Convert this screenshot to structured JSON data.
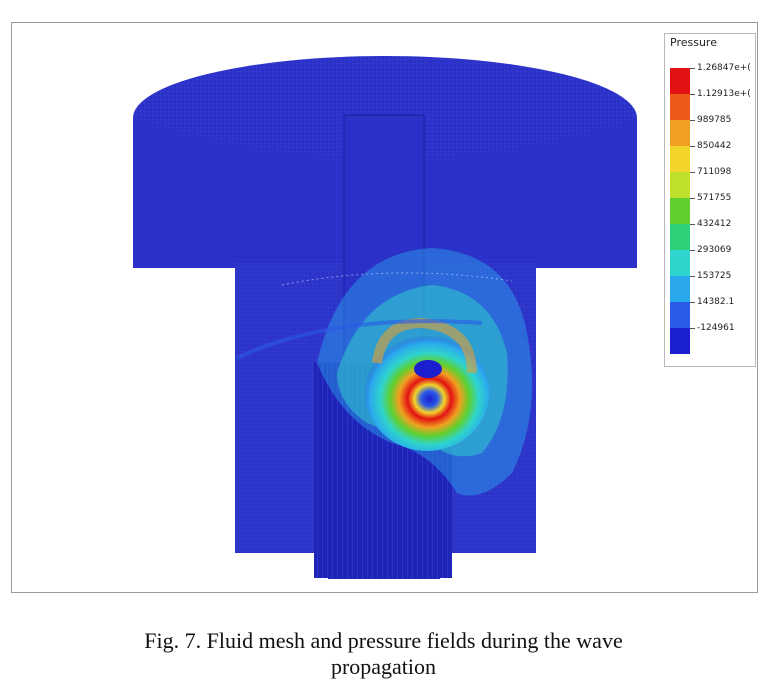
{
  "figure": {
    "caption_line1": "Fig. 7. Fluid mesh and pressure fields during the wave",
    "caption_line2": "propagation"
  },
  "legend": {
    "title": "Pressure",
    "entries": [
      {
        "label": "1.26847e+(",
        "color": "#e21212"
      },
      {
        "label": "1.12913e+(",
        "color": "#ee5a1a"
      },
      {
        "label": "989785",
        "color": "#f2a021"
      },
      {
        "label": "850442",
        "color": "#f3d52a"
      },
      {
        "label": "711098",
        "color": "#bfe02a"
      },
      {
        "label": "571755",
        "color": "#5fd02f"
      },
      {
        "label": "432412",
        "color": "#2fd07a"
      },
      {
        "label": "293069",
        "color": "#2fd4cc"
      },
      {
        "label": "153725",
        "color": "#2aa8ee"
      },
      {
        "label": "14382.1",
        "color": "#2a5ae8"
      },
      {
        "label": "-124961",
        "color": "#1c1fd0"
      }
    ]
  },
  "colors": {
    "mesh_base": "#2a30c8",
    "mesh_dark": "#1c22b0",
    "mesh_light": "#3a44d8"
  }
}
